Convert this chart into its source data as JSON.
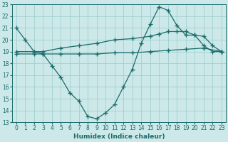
{
  "xlabel": "Humidex (Indice chaleur)",
  "xlim": [
    -0.5,
    23.5
  ],
  "ylim": [
    13,
    23
  ],
  "xticks": [
    0,
    1,
    2,
    3,
    4,
    5,
    6,
    7,
    8,
    9,
    10,
    11,
    12,
    13,
    14,
    15,
    16,
    17,
    18,
    19,
    20,
    21,
    22,
    23
  ],
  "yticks": [
    13,
    14,
    15,
    16,
    17,
    18,
    19,
    20,
    21,
    22,
    23
  ],
  "bg_color": "#cce8e8",
  "line_color": "#1a6b6b",
  "grid_color": "#99cccc",
  "line1_x": [
    0,
    1,
    2,
    3,
    4,
    5,
    6,
    7,
    8,
    9,
    10,
    11,
    12,
    13,
    14,
    15,
    16,
    17,
    18,
    19,
    20,
    21,
    22,
    23
  ],
  "line1_y": [
    21,
    20,
    19,
    18.8,
    17.8,
    16.8,
    15.5,
    14.8,
    13.5,
    13.3,
    13.8,
    14.5,
    16,
    17.5,
    19.7,
    21.3,
    22.8,
    22.5,
    21.2,
    20.4,
    20.4,
    19.5,
    19,
    19
  ],
  "line2_x": [
    0,
    2,
    3,
    5,
    7,
    9,
    11,
    13,
    15,
    16,
    17,
    18,
    19,
    20,
    21,
    22,
    23
  ],
  "line2_y": [
    19.0,
    19.0,
    19.0,
    19.3,
    19.5,
    19.7,
    20.0,
    20.1,
    20.3,
    20.5,
    20.7,
    20.7,
    20.7,
    20.4,
    20.3,
    19.5,
    19.0
  ],
  "line3_x": [
    0,
    2,
    3,
    5,
    7,
    9,
    11,
    13,
    15,
    17,
    19,
    21,
    23
  ],
  "line3_y": [
    18.8,
    18.8,
    18.8,
    18.8,
    18.8,
    18.8,
    18.9,
    18.9,
    19.0,
    19.1,
    19.2,
    19.3,
    19.0
  ],
  "marker": "+",
  "markersize": 4,
  "linewidth": 0.9,
  "tick_fontsize": 5.5,
  "xlabel_fontsize": 6.5
}
